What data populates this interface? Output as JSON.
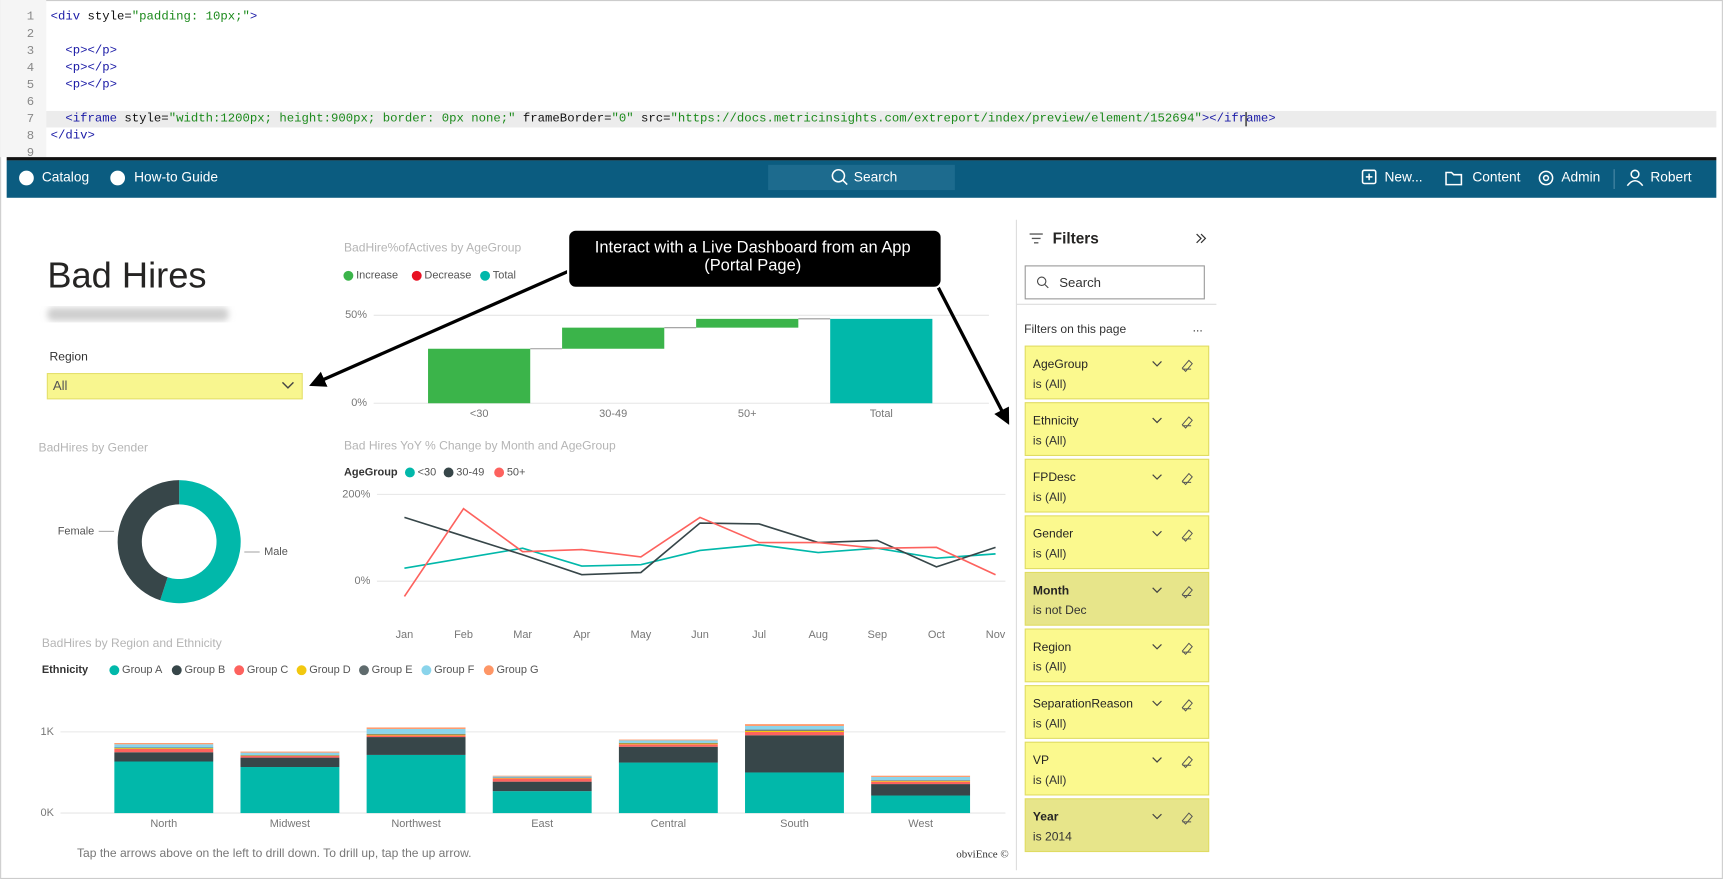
{
  "code_editor": {
    "line_numbers": [
      1,
      2,
      3,
      4,
      5,
      6,
      7,
      8,
      9
    ],
    "lines": [
      {
        "number": 1,
        "text": "<div style=\"padding: 10px;\">"
      },
      {
        "number": 3,
        "text": "  <p></p>"
      },
      {
        "number": 4,
        "text": "  <p></p>"
      },
      {
        "number": 5,
        "text": "  <p></p>"
      },
      {
        "number": 7,
        "text": "  <iframe style=\"width:1200px; height:900px; border: 0px none;\" frameBorder=\"0\" src=\"https://docs.metricinsights.com/extreport/index/preview/element/152694\"></iframe>"
      },
      {
        "number": 8,
        "text": "</div>"
      }
    ]
  },
  "navbar": {
    "left": [
      "Catalog",
      "How-to Guide"
    ],
    "search": "Search",
    "right": [
      "New...",
      "Content",
      "Admin",
      "Robert"
    ]
  },
  "callout": {
    "lines": [
      "Interact with a Live Dashboard from an App",
      "(Portal Page)"
    ]
  },
  "dashboard": {
    "title": "Bad Hires",
    "slicer": {
      "label": "Region",
      "value": "All"
    },
    "footer_note": "Tap the arrows above on the left to drill down. To drill up, tap the up arrow.",
    "credit": "obviEnce ©",
    "charts": [
      {
        "type": "waterfall",
        "title": "BadHire%ofActives by AgeGroup",
        "legend": [
          {
            "name": "Increase",
            "color": "#3bb44a"
          },
          {
            "name": "Decrease",
            "color": "#e81123"
          },
          {
            "name": "Total",
            "color": "#01b8aa"
          }
        ],
        "categories": [
          "<30",
          "30-49",
          "50+",
          "Total"
        ],
        "values": [
          31,
          12,
          5,
          48
        ],
        "ylim": [
          0,
          55
        ],
        "yticks": [
          {
            "value": 0,
            "label": "0%"
          },
          {
            "value": 50,
            "label": "50%"
          }
        ]
      },
      {
        "type": "donut",
        "title": "BadHires by Gender",
        "categories": [
          "Male",
          "Female"
        ],
        "values": [
          55,
          45
        ],
        "colors": [
          "#01b8aa",
          "#374649"
        ]
      },
      {
        "type": "line",
        "title": "Bad Hires YoY % Change by Month and AgeGroup",
        "legend_title": "AgeGroup",
        "categories": [
          "Jan",
          "Feb",
          "Mar",
          "Apr",
          "May",
          "Jun",
          "Jul",
          "Aug",
          "Sep",
          "Oct",
          "Nov"
        ],
        "series": [
          {
            "name": "<30",
            "color": "#01b8aa",
            "values": [
              30,
              53,
              76,
              35,
              38,
              71,
              84,
              66,
              76,
              53,
              63
            ]
          },
          {
            "name": "30-49",
            "color": "#374649",
            "values": [
              147,
              104,
              61,
              15,
              20,
              134,
              132,
              89,
              94,
              33,
              78
            ]
          },
          {
            "name": "50+",
            "color": "#fd625e",
            "values": [
              -35,
              167,
              68,
              73,
              56,
              147,
              89,
              89,
              76,
              78,
              15
            ]
          }
        ],
        "ylim": [
          -60,
          210
        ],
        "yticks": [
          {
            "value": 0,
            "label": "0%"
          },
          {
            "value": 200,
            "label": "200%"
          }
        ]
      },
      {
        "type": "stacked_bar",
        "title": "BadHires by Region and Ethnicity",
        "legend_title": "Ethnicity",
        "categories": [
          "North",
          "Midwest",
          "Northwest",
          "East",
          "Central",
          "South",
          "West"
        ],
        "series": [
          {
            "name": "Group A",
            "color": "#01b8aa",
            "values": [
              635,
              567,
              716,
              270,
              622,
              500,
              216
            ]
          },
          {
            "name": "Group B",
            "color": "#374649",
            "values": [
              114,
              116,
              220,
              117,
              195,
              458,
              141
            ]
          },
          {
            "name": "Group C",
            "color": "#fd625e",
            "values": [
              40,
              20,
              20,
              40,
              30,
              40,
              30
            ]
          },
          {
            "name": "Group D",
            "color": "#f2c80f",
            "values": [
              10,
              5,
              10,
              5,
              10,
              15,
              10
            ]
          },
          {
            "name": "Group E",
            "color": "#5f6b6d",
            "values": [
              8,
              6,
              10,
              5,
              8,
              15,
              8
            ]
          },
          {
            "name": "Group F",
            "color": "#8ad4eb",
            "values": [
              40,
              30,
              60,
              15,
              30,
              45,
              40
            ]
          },
          {
            "name": "Group G",
            "color": "#fe9666",
            "values": [
              15,
              13,
              18,
              8,
              10,
              22,
              15
            ]
          }
        ],
        "ylim": [
          0,
          1150
        ],
        "yticks": [
          {
            "value": 0,
            "label": "0K"
          },
          {
            "value": 1000,
            "label": "1K"
          }
        ]
      }
    ]
  },
  "filters_pane": {
    "title": "Filters",
    "search": "Search",
    "section": "Filters on this page",
    "more": "...",
    "filters": [
      {
        "name": "AgeGroup",
        "state": "is (All)",
        "applied": false
      },
      {
        "name": "Ethnicity",
        "state": "is (All)",
        "applied": false
      },
      {
        "name": "FPDesc",
        "state": "is (All)",
        "applied": false
      },
      {
        "name": "Gender",
        "state": "is (All)",
        "applied": false
      },
      {
        "name": "Month",
        "state": "is not Dec",
        "applied": true
      },
      {
        "name": "Region",
        "state": "is (All)",
        "applied": false
      },
      {
        "name": "SeparationReason",
        "state": "is (All)",
        "applied": false
      },
      {
        "name": "VP",
        "state": "is (All)",
        "applied": false
      },
      {
        "name": "Year",
        "state": "is 2014",
        "applied": true
      }
    ]
  }
}
